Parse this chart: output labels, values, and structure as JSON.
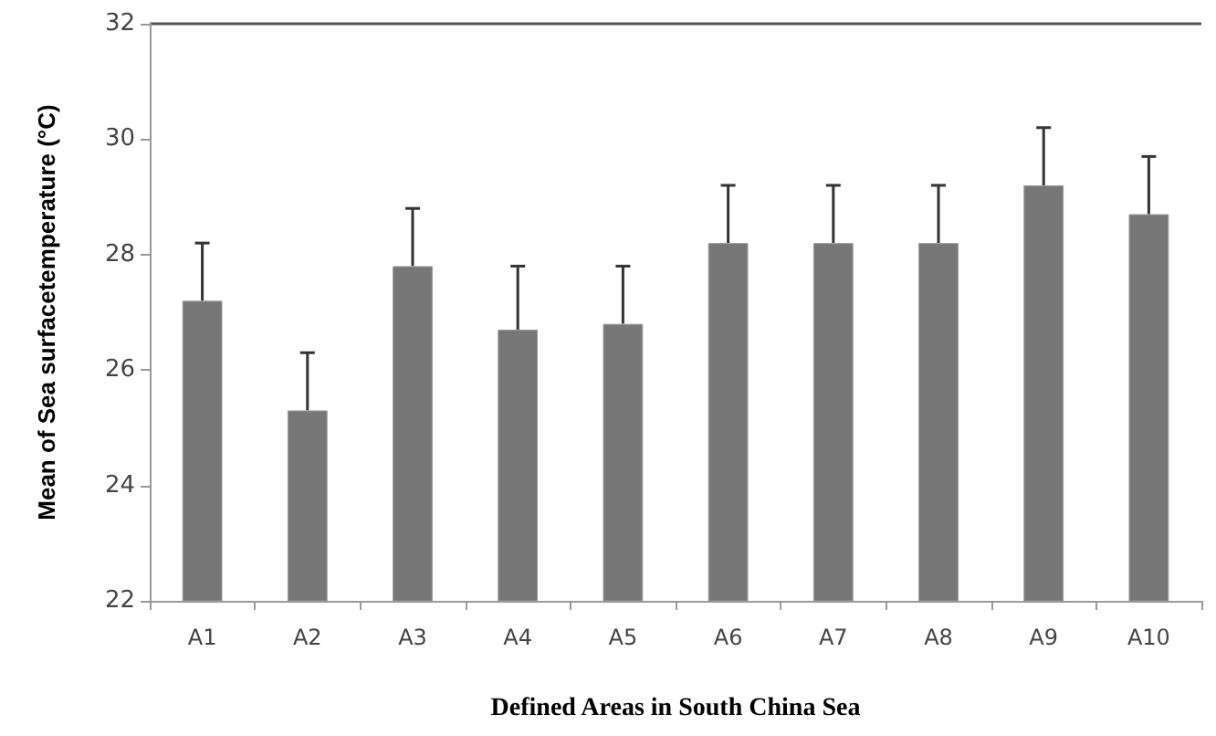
{
  "chart_data": {
    "type": "bar",
    "xlabel": "Defined Areas in South China Sea",
    "ylabel": "Mean of Sea surfacetemperature (°C)",
    "categories": [
      "A1",
      "A2",
      "A3",
      "A4",
      "A5",
      "A6",
      "A7",
      "A8",
      "A9",
      "A10"
    ],
    "values": [
      27.2,
      25.3,
      27.8,
      26.7,
      26.8,
      28.2,
      28.2,
      28.2,
      29.2,
      28.7
    ],
    "errors": [
      [
        27.2,
        28.2
      ],
      [
        25.3,
        26.3
      ],
      [
        27.8,
        28.8
      ],
      [
        26.7,
        27.8
      ],
      [
        26.8,
        27.8
      ],
      [
        28.2,
        29.2
      ],
      [
        28.2,
        29.2
      ],
      [
        28.2,
        29.2
      ],
      [
        29.2,
        30.2
      ],
      [
        28.7,
        29.7
      ]
    ],
    "color": "#777777",
    "ylim": [
      22,
      32
    ],
    "yticks": [
      22,
      24,
      26,
      28,
      30,
      32
    ],
    "grid": false
  }
}
